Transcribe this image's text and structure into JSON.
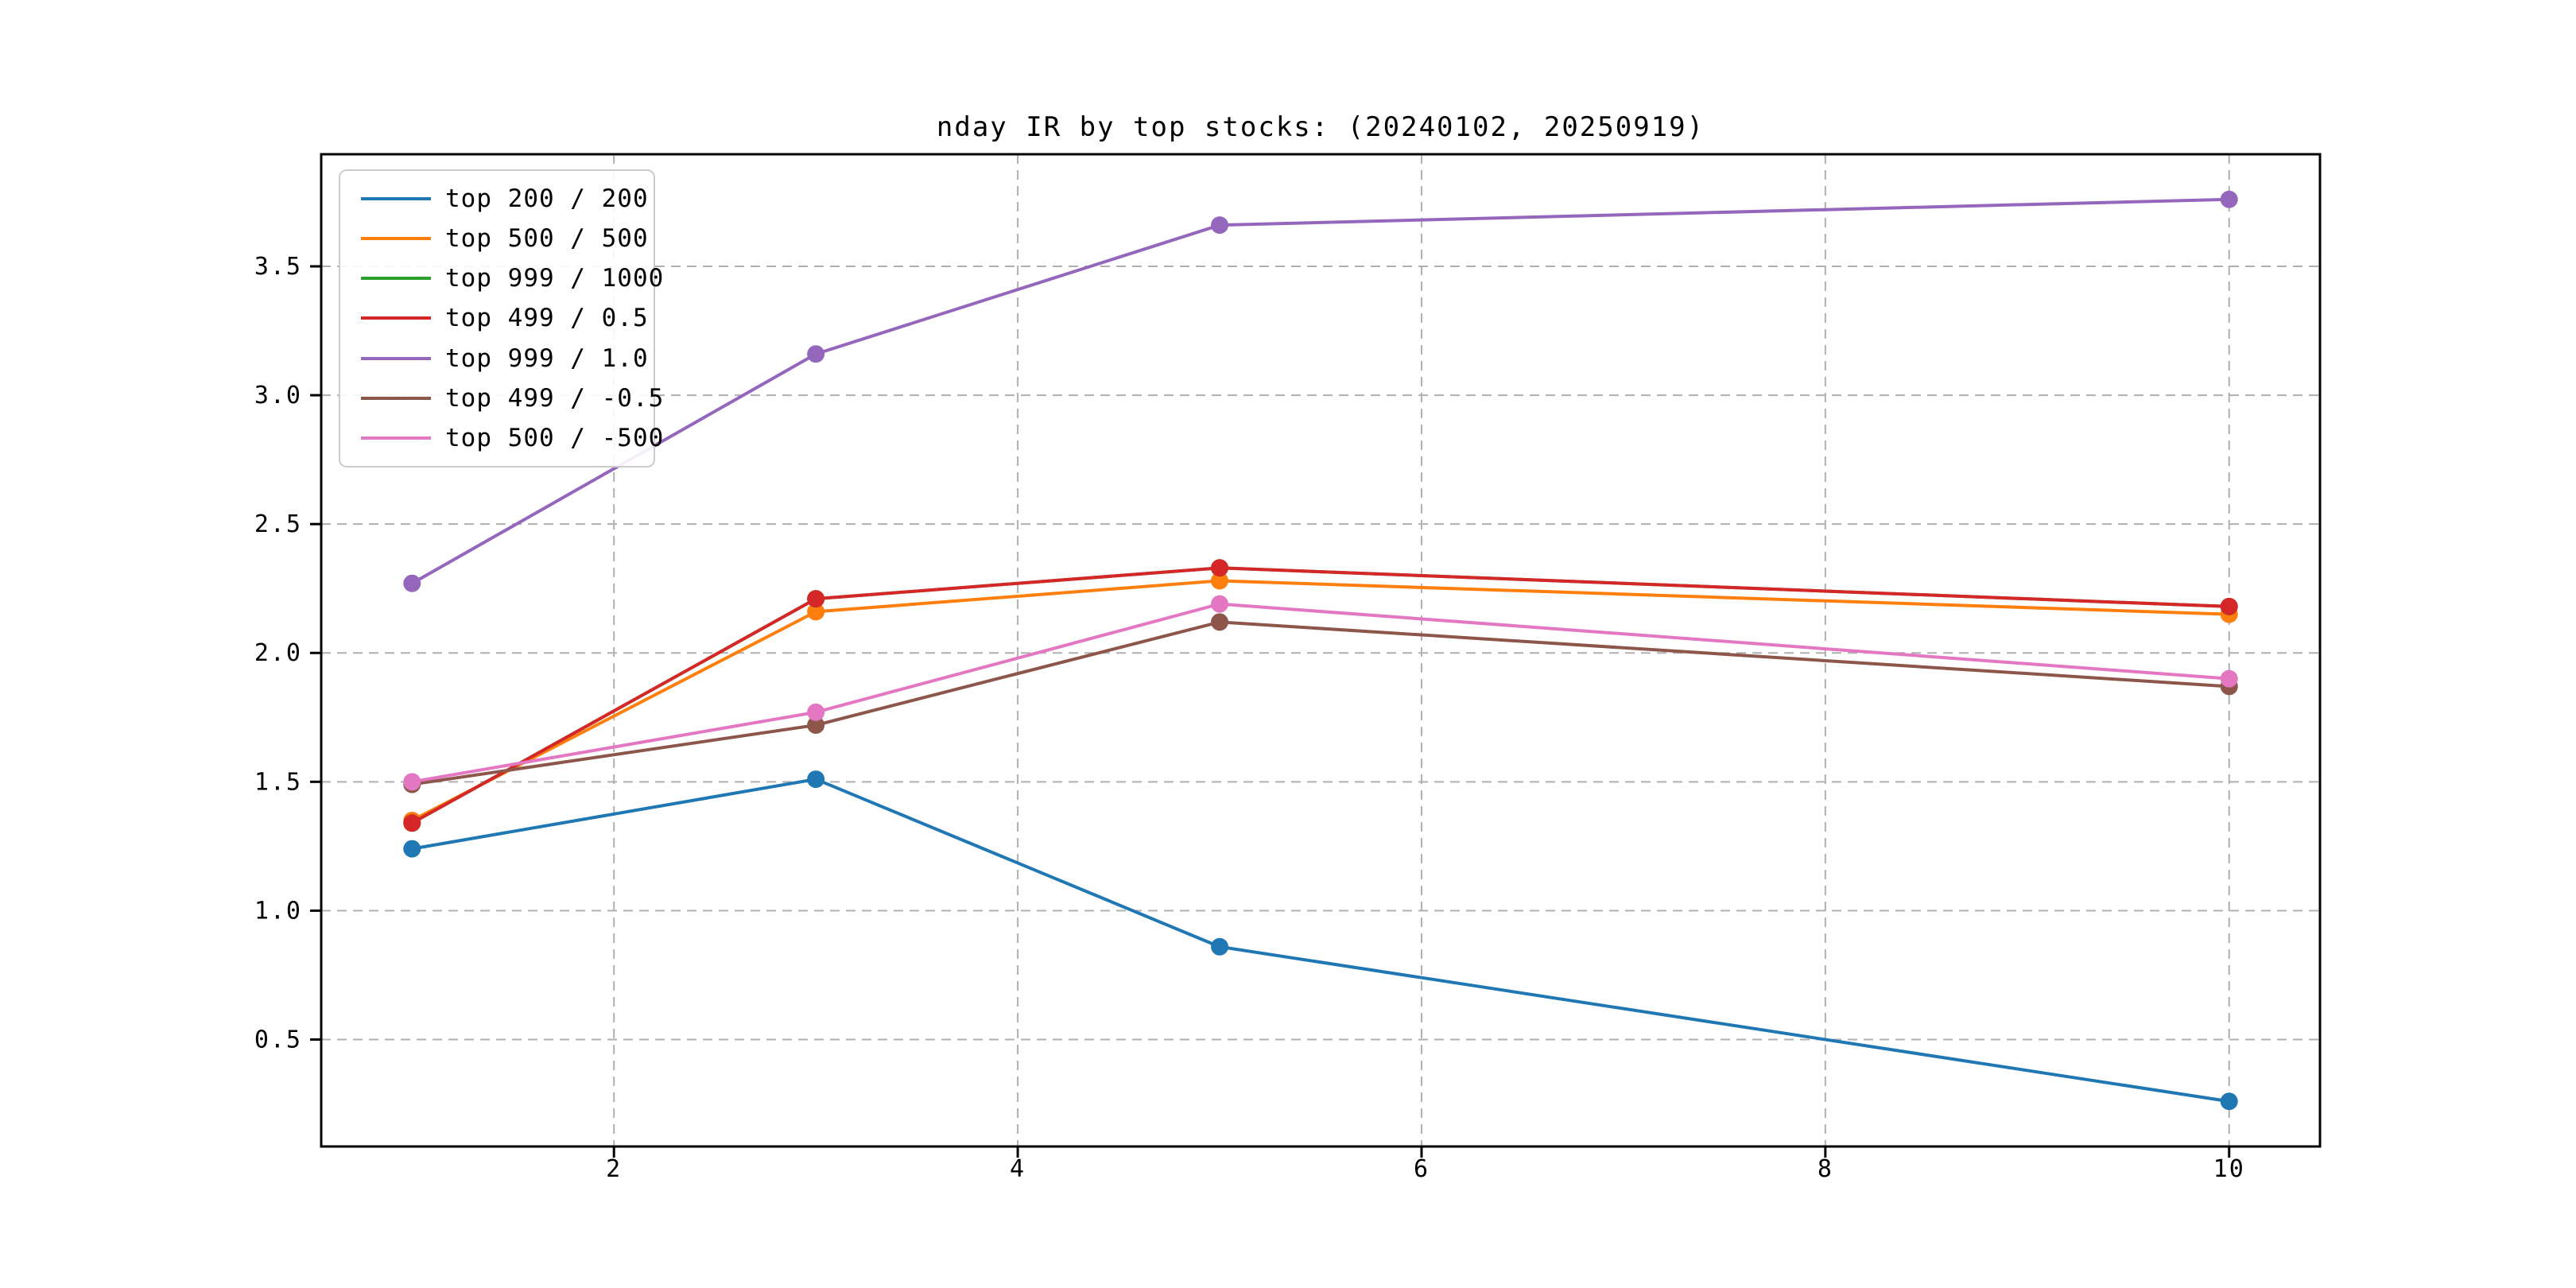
{
  "chart_data": {
    "type": "line",
    "title": "nday IR by top stocks: (20240102, 20250919)",
    "x": [
      1,
      3,
      5,
      10
    ],
    "series": [
      {
        "name": "top 200 / 200",
        "color": "#1f77b4",
        "values": [
          1.24,
          1.51,
          0.86,
          0.26
        ]
      },
      {
        "name": "top 500 / 500",
        "color": "#ff7f0e",
        "values": [
          1.35,
          2.16,
          2.28,
          2.15
        ]
      },
      {
        "name": "top 999 / 1000",
        "color": "#2ca02c",
        "values": [
          1.34,
          2.21,
          2.33,
          2.18
        ]
      },
      {
        "name": "top 499 / 0.5",
        "color": "#d62728",
        "values": [
          1.34,
          2.21,
          2.33,
          2.18
        ]
      },
      {
        "name": "top 999 / 1.0",
        "color": "#9467bd",
        "values": [
          2.27,
          3.16,
          3.66,
          3.76
        ]
      },
      {
        "name": "top 499 / -0.5",
        "color": "#8c564b",
        "values": [
          1.49,
          1.72,
          2.12,
          1.87
        ]
      },
      {
        "name": "top 500 / -500",
        "color": "#e377c2",
        "values": [
          1.5,
          1.77,
          2.19,
          1.9
        ]
      }
    ],
    "xticks": [
      2,
      4,
      6,
      8,
      10
    ],
    "yticks": [
      0.5,
      1.0,
      1.5,
      2.0,
      2.5,
      3.0,
      3.5
    ],
    "xlim": [
      0.55,
      10.45
    ],
    "ylim": [
      0.085,
      3.935
    ],
    "grid": true,
    "marker": "circle",
    "legend_position": "upper-left"
  },
  "colors": {
    "background": "#ffffff",
    "axes": "#000000",
    "grid": "#b0b0b0",
    "legend_border": "#cccccc"
  }
}
